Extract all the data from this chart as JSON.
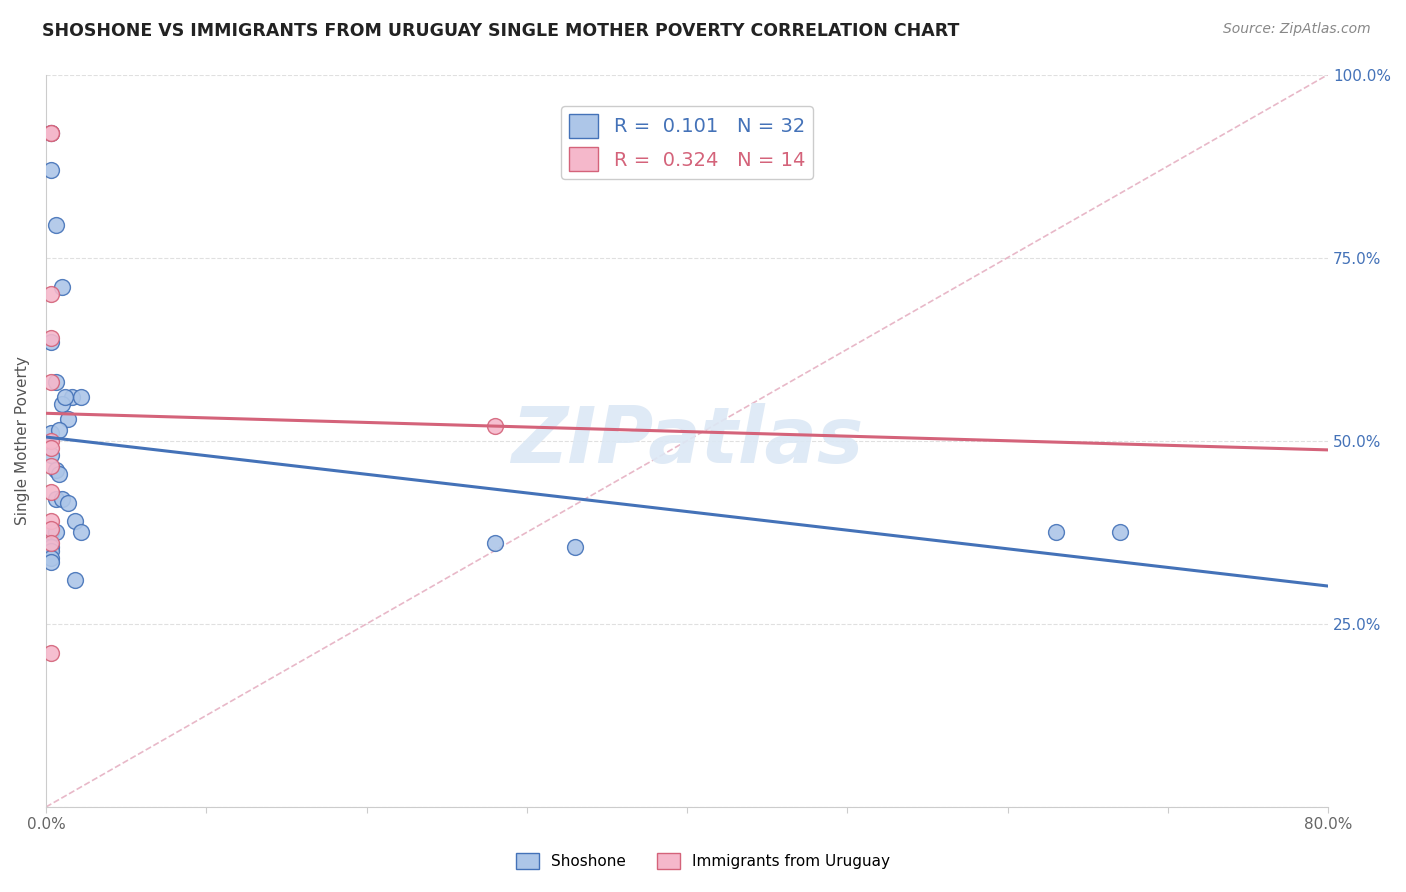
{
  "title": "SHOSHONE VS IMMIGRANTS FROM URUGUAY SINGLE MOTHER POVERTY CORRELATION CHART",
  "source": "Source: ZipAtlas.com",
  "ylabel": "Single Mother Poverty",
  "legend_label1": "Shoshone",
  "legend_label2": "Immigrants from Uruguay",
  "R1": 0.101,
  "N1": 32,
  "R2": 0.324,
  "N2": 14,
  "color1": "#adc6e8",
  "color2": "#f5b8cb",
  "line_color1": "#4472b8",
  "line_color2": "#d4637a",
  "diag_color": "#e8b8c8",
  "xlim": [
    0.0,
    0.8
  ],
  "ylim": [
    0.0,
    1.0
  ],
  "xticks": [
    0.0,
    0.1,
    0.2,
    0.3,
    0.4,
    0.5,
    0.6,
    0.7,
    0.8
  ],
  "xticklabels": [
    "0.0%",
    "",
    "",
    "",
    "",
    "",
    "",
    "",
    "80.0%"
  ],
  "yticks": [
    0.0,
    0.25,
    0.5,
    0.75,
    1.0
  ],
  "ytick_right_labels": [
    "",
    "25.0%",
    "50.0%",
    "75.0%",
    "100.0%"
  ],
  "shoshone_x": [
    0.003,
    0.003,
    0.006,
    0.01,
    0.016,
    0.022,
    0.003,
    0.006,
    0.01,
    0.014,
    0.003,
    0.008,
    0.012,
    0.003,
    0.006,
    0.008,
    0.006,
    0.01,
    0.014,
    0.018,
    0.022,
    0.003,
    0.006,
    0.003,
    0.003,
    0.003,
    0.003,
    0.018,
    0.28,
    0.33,
    0.63,
    0.67
  ],
  "shoshone_y": [
    0.92,
    0.87,
    0.795,
    0.71,
    0.56,
    0.56,
    0.635,
    0.58,
    0.55,
    0.53,
    0.51,
    0.515,
    0.56,
    0.48,
    0.46,
    0.455,
    0.42,
    0.42,
    0.415,
    0.39,
    0.375,
    0.375,
    0.375,
    0.355,
    0.35,
    0.34,
    0.335,
    0.31,
    0.36,
    0.355,
    0.375,
    0.375
  ],
  "uruguay_x": [
    0.003,
    0.003,
    0.003,
    0.003,
    0.003,
    0.003,
    0.003,
    0.003,
    0.003,
    0.003,
    0.003,
    0.003,
    0.28,
    0.003
  ],
  "uruguay_y": [
    0.92,
    0.92,
    0.7,
    0.64,
    0.58,
    0.5,
    0.49,
    0.465,
    0.43,
    0.39,
    0.38,
    0.36,
    0.52,
    0.21
  ],
  "watermark": "ZIPatlas",
  "bg_color": "#ffffff",
  "grid_color": "#e0e0e0"
}
